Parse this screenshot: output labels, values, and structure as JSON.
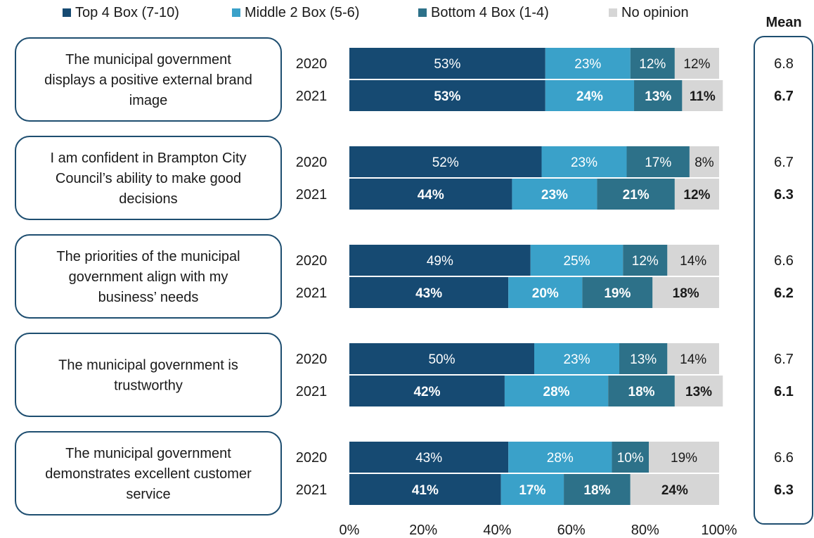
{
  "chart_data": {
    "type": "bar",
    "orientation": "horizontal",
    "stacked": true,
    "legend": {
      "position": "top",
      "entries": [
        {
          "name": "Top 4 Box (7-10)",
          "color": "#164a72"
        },
        {
          "name": "Middle 2 Box (5-6)",
          "color": "#3aa1c9"
        },
        {
          "name": "Bottom 4 Box (1-4)",
          "color": "#2d7189"
        },
        {
          "name": "No opinion",
          "color": "#d6d6d6"
        }
      ]
    },
    "mean_header": "Mean",
    "groups": [
      {
        "statement": [
          "The municipal government",
          "displays a positive external brand",
          "image"
        ],
        "rows": [
          {
            "year": "2020",
            "values": [
              53,
              23,
              12,
              12
            ],
            "labels": [
              "53%",
              "23%",
              "12%",
              "12%"
            ],
            "mean": "6.8",
            "bold": false
          },
          {
            "year": "2021",
            "values": [
              53,
              24,
              13,
              11
            ],
            "labels": [
              "53%",
              "24%",
              "13%",
              "11%"
            ],
            "mean": "6.7",
            "bold": true
          }
        ]
      },
      {
        "statement": [
          "I am confident in Brampton City",
          "Council’s ability to make good",
          "decisions"
        ],
        "rows": [
          {
            "year": "2020",
            "values": [
              52,
              23,
              17,
              8
            ],
            "labels": [
              "52%",
              "23%",
              "17%",
              "8%"
            ],
            "mean": "6.7",
            "bold": false
          },
          {
            "year": "2021",
            "values": [
              44,
              23,
              21,
              12
            ],
            "labels": [
              "44%",
              "23%",
              "21%",
              "12%"
            ],
            "mean": "6.3",
            "bold": true
          }
        ]
      },
      {
        "statement": [
          "The priorities of the municipal",
          "government align with my",
          "business’ needs"
        ],
        "rows": [
          {
            "year": "2020",
            "values": [
              49,
              25,
              12,
              14
            ],
            "labels": [
              "49%",
              "25%",
              "12%",
              "14%"
            ],
            "mean": "6.6",
            "bold": false
          },
          {
            "year": "2021",
            "values": [
              43,
              20,
              19,
              18
            ],
            "labels": [
              "43%",
              "20%",
              "19%",
              "18%"
            ],
            "mean": "6.2",
            "bold": true
          }
        ]
      },
      {
        "statement": [
          "The municipal government is",
          "trustworthy"
        ],
        "rows": [
          {
            "year": "2020",
            "values": [
              50,
              23,
              13,
              14
            ],
            "labels": [
              "50%",
              "23%",
              "13%",
              "14%"
            ],
            "mean": "6.7",
            "bold": false
          },
          {
            "year": "2021",
            "values": [
              42,
              28,
              18,
              13
            ],
            "labels": [
              "42%",
              "28%",
              "18%",
              "13%"
            ],
            "mean": "6.1",
            "bold": true
          }
        ]
      },
      {
        "statement": [
          "The municipal government",
          "demonstrates excellent customer",
          "service"
        ],
        "rows": [
          {
            "year": "2020",
            "values": [
              43,
              28,
              10,
              19
            ],
            "labels": [
              "43%",
              "28%",
              "10%",
              "19%"
            ],
            "mean": "6.6",
            "bold": false
          },
          {
            "year": "2021",
            "values": [
              41,
              17,
              18,
              24
            ],
            "labels": [
              "41%",
              "17%",
              "18%",
              "24%"
            ],
            "mean": "6.3",
            "bold": true
          }
        ]
      }
    ],
    "xlim": [
      0,
      100
    ],
    "xticks": [
      "0%",
      "20%",
      "40%",
      "60%",
      "80%",
      "100%"
    ],
    "grid": false
  }
}
